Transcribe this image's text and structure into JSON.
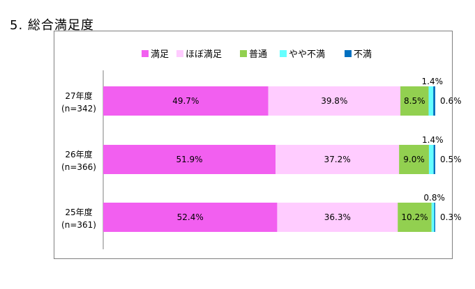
{
  "page": {
    "title": "5. 総合満足度"
  },
  "colors": {
    "frame": "#7f7f7f",
    "axis": "#7f7f7f"
  },
  "chart_data": {
    "type": "bar",
    "orientation": "horizontal",
    "stacked": true,
    "percent": true,
    "title": "",
    "xlim": [
      0,
      100
    ],
    "grid": false,
    "legend_position": "top",
    "categories": [
      {
        "year": "27年度",
        "n": "(n=342)"
      },
      {
        "year": "26年度",
        "n": "(n=366)"
      },
      {
        "year": "25年度",
        "n": "(n=361)"
      }
    ],
    "series": [
      {
        "name": "満足",
        "color": "#f25ff0",
        "values": [
          49.7,
          51.9,
          52.4
        ],
        "labels": [
          "49.7%",
          "51.9%",
          "52.4%"
        ]
      },
      {
        "name": "ほぼ満足",
        "color": "#ffccff",
        "values": [
          39.8,
          37.2,
          36.3
        ],
        "labels": [
          "39.8%",
          "37.2%",
          "36.3%"
        ]
      },
      {
        "name": "普通",
        "color": "#92d050",
        "values": [
          8.5,
          9.0,
          10.2
        ],
        "labels": [
          "8.5%",
          "9.0%",
          "10.2%"
        ]
      },
      {
        "name": "やや不満",
        "color": "#66ffff",
        "values": [
          1.4,
          1.4,
          0.8
        ],
        "labels": [
          "1.4%",
          "1.4%",
          "0.8%"
        ]
      },
      {
        "name": "不満",
        "color": "#0070c0",
        "values": [
          0.6,
          0.5,
          0.3
        ],
        "labels": [
          "0.6%",
          "0.5%",
          "0.3%"
        ]
      }
    ]
  }
}
